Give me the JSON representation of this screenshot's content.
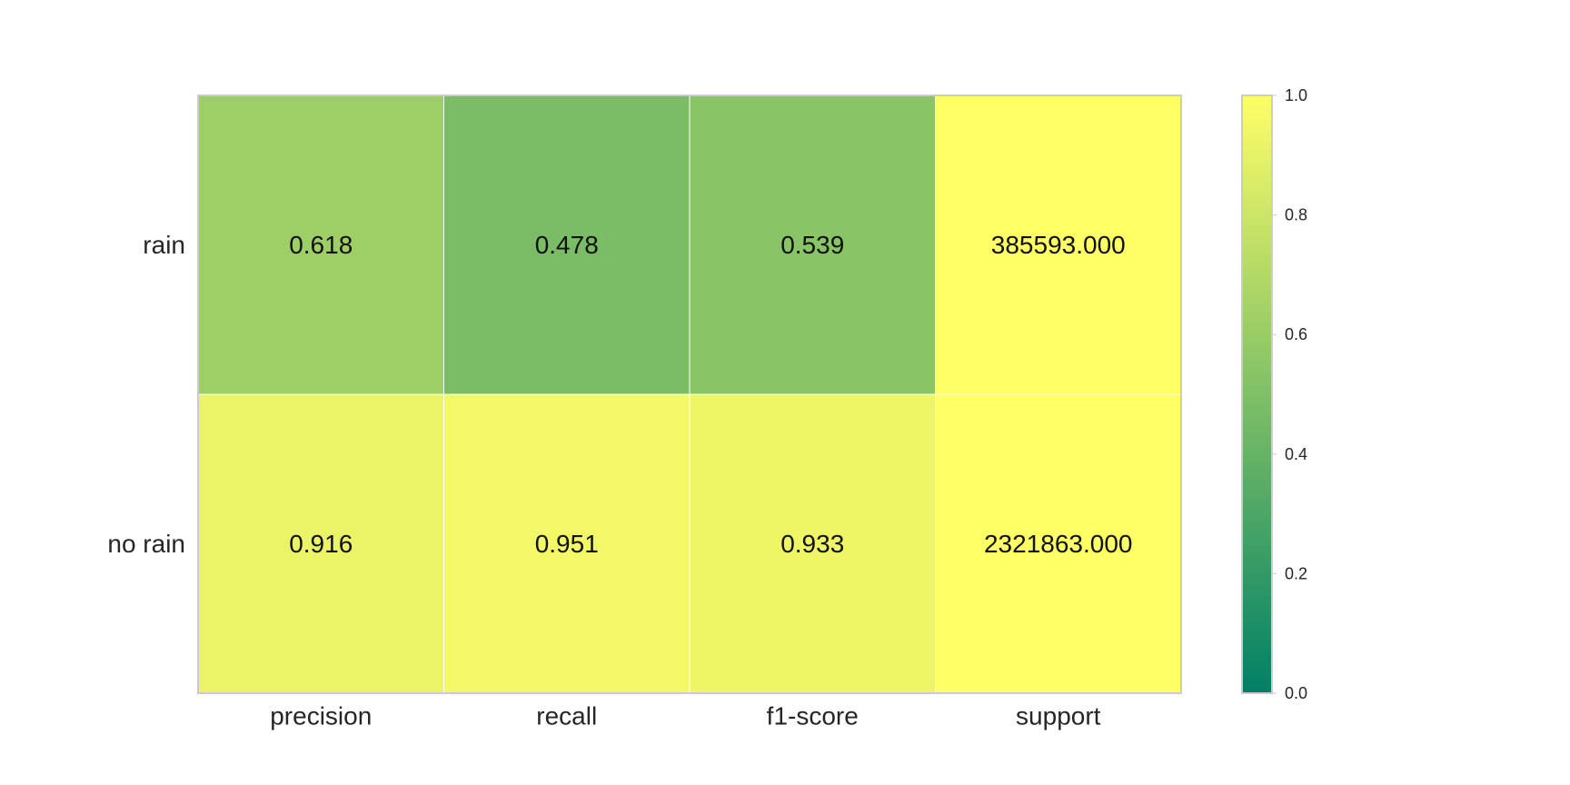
{
  "chart_data": {
    "type": "heatmap",
    "title": "",
    "xlabel": "",
    "ylabel": "",
    "columns": [
      "precision",
      "recall",
      "f1-score",
      "support"
    ],
    "rows": [
      "rain",
      "no rain"
    ],
    "values": [
      [
        0.618,
        0.478,
        0.539,
        385593.0
      ],
      [
        0.916,
        0.951,
        0.933,
        2321863.0
      ]
    ],
    "cell_labels": [
      [
        "0.618",
        "0.478",
        "0.539",
        "385593.000"
      ],
      [
        "0.916",
        "0.951",
        "0.933",
        "2321863.000"
      ]
    ],
    "colormap": "summer",
    "color_range": [
      0.0,
      1.0
    ],
    "colorbar_ticks": [
      "0.0",
      "0.2",
      "0.4",
      "0.6",
      "0.8",
      "1.0"
    ],
    "colors": {
      "cmap_low": "#008066",
      "cmap_high": "#ffff66",
      "frame": "#cccccc",
      "grid": "#ffffff"
    }
  }
}
